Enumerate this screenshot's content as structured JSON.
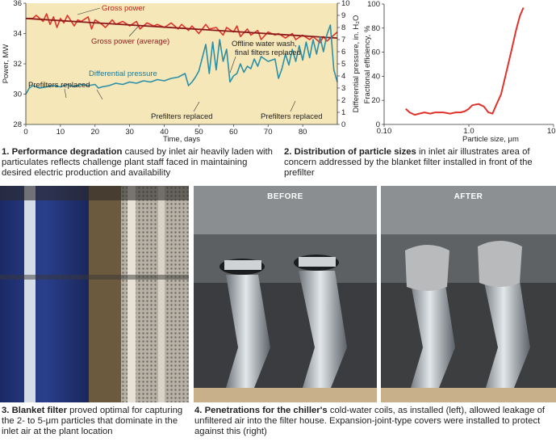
{
  "chart_data": [
    {
      "type": "line",
      "xlabel": "Time, days",
      "ylabel_left": "Power, MW",
      "ylabel_right": "Differential pressure, in. H₂O",
      "xlim": [
        0,
        90
      ],
      "ylim_left": [
        28,
        36
      ],
      "ylim_right": [
        0,
        10
      ],
      "x_ticks": [
        0,
        10,
        20,
        30,
        40,
        50,
        60,
        70,
        80
      ],
      "y_left_ticks": [
        28,
        30,
        32,
        34,
        36
      ],
      "y_right_ticks": [
        0,
        1,
        2,
        3,
        4,
        5,
        6,
        7,
        8,
        9,
        10
      ],
      "series": [
        {
          "name": "Gross power",
          "axis": "left",
          "color": "#e0322b",
          "x": [
            0,
            2,
            3,
            5,
            6,
            7,
            8,
            9,
            10,
            11,
            12,
            14,
            15,
            16,
            18,
            19,
            20,
            22,
            23,
            25,
            26,
            28,
            30,
            32,
            33,
            35,
            37,
            38,
            40,
            42,
            44,
            45,
            47,
            48,
            50,
            52,
            53,
            55,
            57,
            58,
            60,
            61,
            62,
            64,
            65,
            67,
            68,
            70,
            72,
            73,
            75,
            77,
            78,
            80,
            82,
            83,
            85,
            86,
            87,
            88,
            89,
            90
          ],
          "y": [
            35.0,
            35.0,
            35.2,
            34.8,
            35.3,
            34.6,
            35.1,
            34.4,
            35.0,
            34.7,
            35.2,
            34.5,
            34.9,
            34.8,
            35.1,
            34.3,
            34.9,
            34.6,
            34.4,
            34.9,
            34.6,
            34.8,
            34.5,
            34.8,
            34.3,
            34.7,
            34.5,
            34.6,
            34.4,
            34.7,
            34.3,
            34.6,
            34.2,
            34.5,
            34.0,
            34.6,
            34.3,
            34.4,
            33.9,
            34.4,
            34.1,
            34.5,
            33.8,
            34.3,
            33.9,
            34.2,
            33.6,
            34.1,
            33.9,
            34.0,
            33.7,
            34.0,
            33.6,
            33.9,
            33.6,
            33.8,
            33.4,
            33.8,
            33.5,
            33.7,
            33.9,
            34.1
          ]
        },
        {
          "name": "Gross power (average)",
          "axis": "left",
          "color": "#8b1a1a",
          "x": [
            0,
            90
          ],
          "y": [
            35.0,
            33.7
          ]
        },
        {
          "name": "Differential pressure",
          "axis": "right",
          "color": "#2a8fa8",
          "x": [
            0,
            1,
            2,
            4,
            6,
            8,
            10,
            12,
            14,
            16,
            18,
            20,
            21,
            22,
            24,
            26,
            28,
            30,
            32,
            34,
            36,
            38,
            40,
            42,
            44,
            46,
            47,
            48,
            49,
            50,
            51,
            52,
            53,
            54,
            55,
            56,
            57,
            58,
            59,
            60,
            61,
            62,
            63,
            64,
            65,
            66,
            67,
            68,
            70,
            72,
            73,
            74,
            75,
            76,
            77,
            78,
            79,
            80,
            81,
            82,
            83,
            84,
            85,
            86,
            87,
            88,
            89,
            90
          ],
          "y": [
            2.5,
            3.0,
            3.2,
            3.0,
            3.1,
            3.2,
            3.1,
            3.3,
            3.1,
            3.3,
            3.2,
            3.3,
            3.0,
            3.1,
            3.2,
            3.4,
            3.3,
            3.5,
            3.4,
            3.6,
            3.5,
            3.7,
            3.6,
            3.8,
            3.9,
            4.2,
            3.2,
            3.5,
            3.9,
            4.4,
            5.5,
            6.6,
            4.2,
            6.8,
            4.5,
            7.0,
            5.2,
            6.2,
            3.5,
            4.0,
            4.2,
            5.0,
            4.3,
            4.8,
            4.6,
            5.4,
            4.8,
            5.6,
            5.2,
            5.4,
            3.8,
            4.6,
            5.8,
            4.9,
            6.2,
            5.2,
            6.5,
            5.3,
            6.8,
            5.5,
            7.0,
            5.8,
            7.2,
            6.0,
            7.4,
            8.2,
            4.5,
            3.5
          ]
        }
      ],
      "annotations": [
        "Gross power",
        "Gross power (average)",
        "Differential pressure",
        "Prefilters replaced",
        "Offline water wash, final filters replaced",
        "Prefilters replaced",
        "Prefilters replaced"
      ]
    },
    {
      "type": "line",
      "xlabel": "Particle size, μm",
      "ylabel": "Fractional efficiency, %",
      "xscale": "log",
      "xlim": [
        0.1,
        10
      ],
      "ylim": [
        0,
        100
      ],
      "x_ticks": [
        0.1,
        1,
        10
      ],
      "x_tick_labels": [
        "0.10",
        "1.0",
        "10.0"
      ],
      "y_ticks": [
        0,
        20,
        40,
        60,
        80,
        100
      ],
      "series": [
        {
          "color": "#e0322b",
          "x": [
            0.18,
            0.2,
            0.23,
            0.26,
            0.3,
            0.35,
            0.4,
            0.5,
            0.6,
            0.7,
            0.8,
            0.9,
            1.0,
            1.1,
            1.3,
            1.5,
            1.7,
            1.9,
            2.1,
            2.4,
            2.8,
            3.2,
            3.6,
            4.0,
            4.4
          ],
          "y": [
            13,
            10,
            8,
            9,
            10,
            9,
            10,
            10,
            9,
            10,
            10,
            11,
            13,
            16,
            17,
            15,
            10,
            9,
            16,
            25,
            45,
            62,
            78,
            90,
            97
          ]
        }
      ]
    }
  ],
  "captions": {
    "fig1_number": "1.",
    "fig1_bold": "Performance degradation",
    "fig1_text": "caused by inlet air heavily laden with particulates reflects challenge plant staff faced in maintaining desired electric production and availability",
    "fig2_number": "2.",
    "fig2_bold": "Distribution of particle sizes",
    "fig2_text": "in inlet air illustrates area of concern addressed by the blanket filter installed in front of the prefilter",
    "fig3_number": "3.",
    "fig3_bold": "Blanket filter",
    "fig3_text": "proved optimal for capturing the 2- to 5-μm particles that dominate in the inlet air at the plant location",
    "fig4_number": "4.",
    "fig4_bold": "Penetrations for the chiller's",
    "fig4_text": "cold-water coils, as installed (left), allowed leakage of unfiltered air into the filter house. Expansion-joint-type covers were installed to protect against this (right)"
  },
  "photo_labels": {
    "before": "BEFORE",
    "after": "AFTER"
  },
  "colors": {
    "chart_background": "#f6e7b8",
    "gross_power": "#e0322b",
    "gross_power_average": "#8b1a1a",
    "differential_pressure": "#2a8fa8"
  }
}
